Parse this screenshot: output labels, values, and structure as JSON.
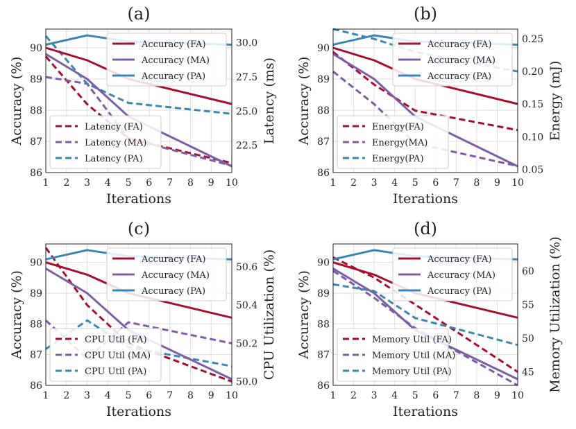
{
  "chart_data": [
    {
      "type": "line",
      "panel": "(a)",
      "xlabel": "Iterations",
      "ylabel_left": "Accuracy (%)",
      "ylabel_right": "Latency (ms)",
      "x_ticks": [
        1,
        2,
        3,
        4,
        5,
        6,
        7,
        8,
        9,
        10
      ],
      "y_left_ticks": [
        86,
        87,
        88,
        89,
        90
      ],
      "y_right_ticks": [
        22.5,
        25.0,
        27.5,
        30.0
      ],
      "ylim_left": [
        86,
        90.6
      ],
      "ylim_right": [
        20.5,
        31.0
      ],
      "legend_left_placement": "top-right",
      "legend_right_placement": "bottom-left",
      "series_left": [
        {
          "name": "Accuracy (FA)",
          "color": "#a50f2e",
          "x": [
            1,
            3,
            5,
            10
          ],
          "values": [
            90.0,
            89.6,
            89.0,
            88.2
          ]
        },
        {
          "name": "Accuracy (MA)",
          "color": "#7b5fa6",
          "x": [
            1,
            3,
            5,
            10
          ],
          "values": [
            89.8,
            89.0,
            87.8,
            86.2
          ]
        },
        {
          "name": "Accuracy (PA)",
          "color": "#3a86b4",
          "x": [
            1,
            3,
            5,
            10
          ],
          "values": [
            90.1,
            90.4,
            90.2,
            90.1
          ]
        }
      ],
      "series_right": [
        {
          "name": "Latency (FA)",
          "color": "#a50f2e",
          "x": [
            1,
            3,
            5,
            10
          ],
          "values": [
            29.0,
            25.5,
            23.0,
            21.2
          ]
        },
        {
          "name": "Latency (MA)",
          "color": "#7b5fa6",
          "x": [
            1,
            3,
            5,
            10
          ],
          "values": [
            27.5,
            27.0,
            23.0,
            21.0
          ]
        },
        {
          "name": "Latency (PA)",
          "color": "#3a86b4",
          "x": [
            1,
            3,
            5,
            10
          ],
          "values": [
            30.5,
            27.0,
            25.6,
            24.8
          ]
        }
      ]
    },
    {
      "type": "line",
      "panel": "(b)",
      "xlabel": "Iterations",
      "ylabel_left": "Accuracy (%)",
      "ylabel_right": "Energy (mJ)",
      "x_ticks": [
        1,
        2,
        3,
        4,
        5,
        6,
        7,
        8,
        9,
        10
      ],
      "y_left_ticks": [
        86,
        87,
        88,
        89,
        90
      ],
      "y_right_ticks": [
        0.05,
        0.1,
        0.15,
        0.2,
        0.25
      ],
      "ylim_left": [
        86,
        90.6
      ],
      "ylim_right": [
        0.045,
        0.265
      ],
      "legend_left_placement": "top-right",
      "legend_right_placement": "bottom-left",
      "series_left": [
        {
          "name": "Accuracy (FA)",
          "color": "#a50f2e",
          "x": [
            1,
            3,
            5,
            10
          ],
          "values": [
            90.0,
            89.6,
            89.0,
            88.2
          ]
        },
        {
          "name": "Accuracy (MA)",
          "color": "#7b5fa6",
          "x": [
            1,
            3,
            5,
            10
          ],
          "values": [
            89.8,
            89.0,
            87.8,
            86.2
          ]
        },
        {
          "name": "Accuracy (PA)",
          "color": "#3a86b4",
          "x": [
            1,
            3,
            5,
            10
          ],
          "values": [
            90.1,
            90.4,
            90.2,
            90.1
          ]
        }
      ],
      "series_right": [
        {
          "name": "Energy(FA)",
          "color": "#a50f2e",
          "x": [
            1,
            3,
            5,
            10
          ],
          "values": [
            0.23,
            0.18,
            0.14,
            0.11
          ]
        },
        {
          "name": "Energy(MA)",
          "color": "#7b5fa6",
          "x": [
            1,
            3,
            5,
            10
          ],
          "values": [
            0.2,
            0.15,
            0.09,
            0.055
          ]
        },
        {
          "name": "Energy(PA)",
          "color": "#3a86b4",
          "x": [
            1,
            3,
            5,
            10
          ],
          "values": [
            0.265,
            0.25,
            0.23,
            0.2
          ]
        }
      ]
    },
    {
      "type": "line",
      "panel": "(c)",
      "xlabel": "Iterations",
      "ylabel_left": "Accuracy (%)",
      "ylabel_right": "CPU Utilization (%)",
      "x_ticks": [
        1,
        2,
        3,
        4,
        5,
        6,
        7,
        8,
        9,
        10
      ],
      "y_left_ticks": [
        86,
        87,
        88,
        89,
        90
      ],
      "y_right_ticks": [
        50.0,
        50.2,
        50.4,
        50.6
      ],
      "ylim_left": [
        86,
        90.6
      ],
      "ylim_right": [
        49.98,
        50.72
      ],
      "legend_left_placement": "top-right",
      "legend_right_placement": "bottom-left",
      "series_left": [
        {
          "name": "Accuracy (FA)",
          "color": "#a50f2e",
          "x": [
            1,
            3,
            5,
            10
          ],
          "values": [
            90.0,
            89.6,
            89.0,
            88.2
          ]
        },
        {
          "name": "Accuracy (MA)",
          "color": "#7b5fa6",
          "x": [
            1,
            3,
            5,
            10
          ],
          "values": [
            89.8,
            89.0,
            87.8,
            86.2
          ]
        },
        {
          "name": "Accuracy (PA)",
          "color": "#3a86b4",
          "x": [
            1,
            3,
            5,
            10
          ],
          "values": [
            90.1,
            90.4,
            90.2,
            90.1
          ]
        }
      ],
      "series_right": [
        {
          "name": "CPU Util (FA)",
          "color": "#a50f2e",
          "x": [
            1,
            3,
            5,
            10
          ],
          "values": [
            50.7,
            50.4,
            50.2,
            50.0
          ]
        },
        {
          "name": "CPU Util (MA)",
          "color": "#7b5fa6",
          "x": [
            1,
            2,
            3,
            5,
            10
          ],
          "values": [
            50.32,
            50.22,
            50.12,
            50.31,
            50.2
          ]
        },
        {
          "name": "CPU Util (PA)",
          "color": "#3a86b4",
          "x": [
            1,
            3,
            5,
            10
          ],
          "values": [
            50.17,
            50.32,
            50.18,
            50.08
          ]
        }
      ]
    },
    {
      "type": "line",
      "panel": "(d)",
      "xlabel": "Iterations",
      "ylabel_left": "Accuracy (%)",
      "ylabel_right": "Memory Utilization (%)",
      "x_ticks": [
        1,
        2,
        3,
        4,
        5,
        6,
        7,
        8,
        9,
        10
      ],
      "y_left_ticks": [
        86,
        87,
        88,
        89,
        90
      ],
      "y_right_ticks": [
        45,
        50,
        55,
        60
      ],
      "ylim_left": [
        86,
        90.6
      ],
      "ylim_right": [
        43.0,
        64.0
      ],
      "legend_left_placement": "top-right",
      "legend_right_placement": "bottom-left",
      "series_left": [
        {
          "name": "Accuracy (FA)",
          "color": "#a50f2e",
          "x": [
            1,
            3,
            5,
            10
          ],
          "values": [
            90.0,
            89.6,
            89.0,
            88.2
          ]
        },
        {
          "name": "Accuracy (MA)",
          "color": "#7b5fa6",
          "x": [
            1,
            3,
            5,
            10
          ],
          "values": [
            89.8,
            89.0,
            87.8,
            86.2
          ]
        },
        {
          "name": "Accuracy (PA)",
          "color": "#3a86b4",
          "x": [
            1,
            3,
            5,
            10
          ],
          "values": [
            90.1,
            90.4,
            90.2,
            90.1
          ]
        }
      ],
      "series_right": [
        {
          "name": "Memory Util (FA)",
          "color": "#a50f2e",
          "x": [
            1,
            3,
            5,
            10
          ],
          "values": [
            62.0,
            59.0,
            55.0,
            45.0
          ]
        },
        {
          "name": "Memory Util (MA)",
          "color": "#7b5fa6",
          "x": [
            1,
            3,
            5,
            10
          ],
          "values": [
            60.0,
            56.0,
            51.5,
            43.0
          ]
        },
        {
          "name": "Memory Util (PA)",
          "color": "#3a86b4",
          "x": [
            1,
            3,
            5,
            10
          ],
          "values": [
            58.0,
            57.0,
            53.0,
            49.0
          ]
        }
      ]
    }
  ]
}
